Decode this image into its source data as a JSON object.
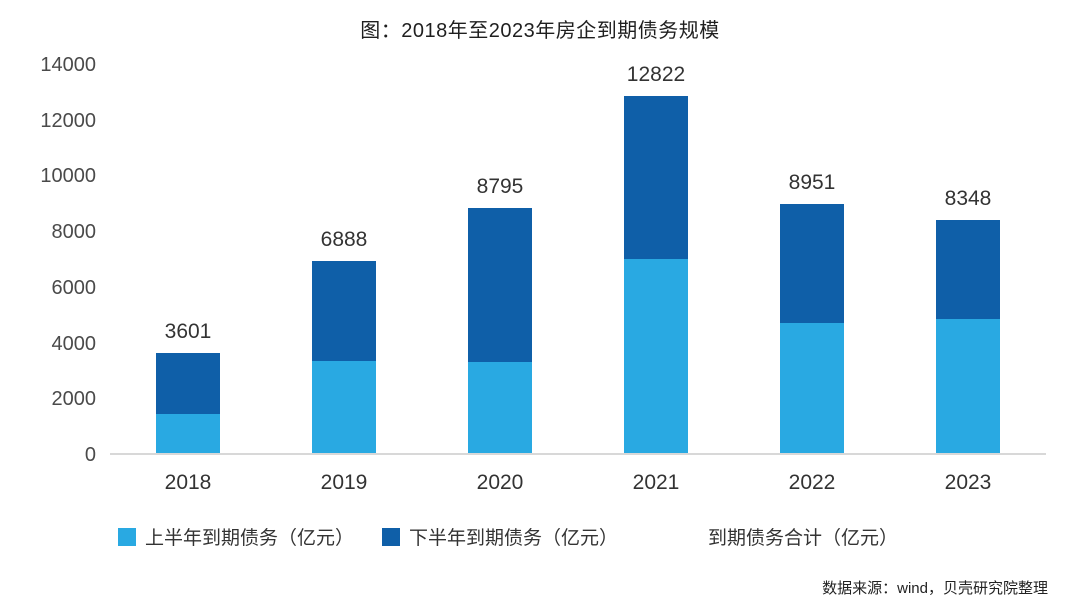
{
  "chart_data": {
    "type": "bar",
    "stacked": true,
    "title": "图：2018年至2023年房企到期债务规模",
    "categories": [
      "2018",
      "2019",
      "2020",
      "2021",
      "2022",
      "2023"
    ],
    "series": [
      {
        "name": "上半年到期债务（亿元）",
        "color": "#29a9e2",
        "values": [
          1400,
          3300,
          3250,
          6950,
          4650,
          4800
        ]
      },
      {
        "name": "下半年到期债务（亿元）",
        "color": "#0f5fa8",
        "values": [
          2201,
          3588,
          5545,
          5872,
          4301,
          3548
        ]
      }
    ],
    "totals": [
      3601,
      6888,
      8795,
      12822,
      8951,
      8348
    ],
    "total_label": "到期债务合计（亿元）",
    "ylabel": "",
    "xlabel": "",
    "ylim": [
      0,
      14000
    ],
    "ytick_step": 2000,
    "grid": false,
    "legend_position": "bottom"
  },
  "source": "数据来源：wind，贝壳研究院整理"
}
